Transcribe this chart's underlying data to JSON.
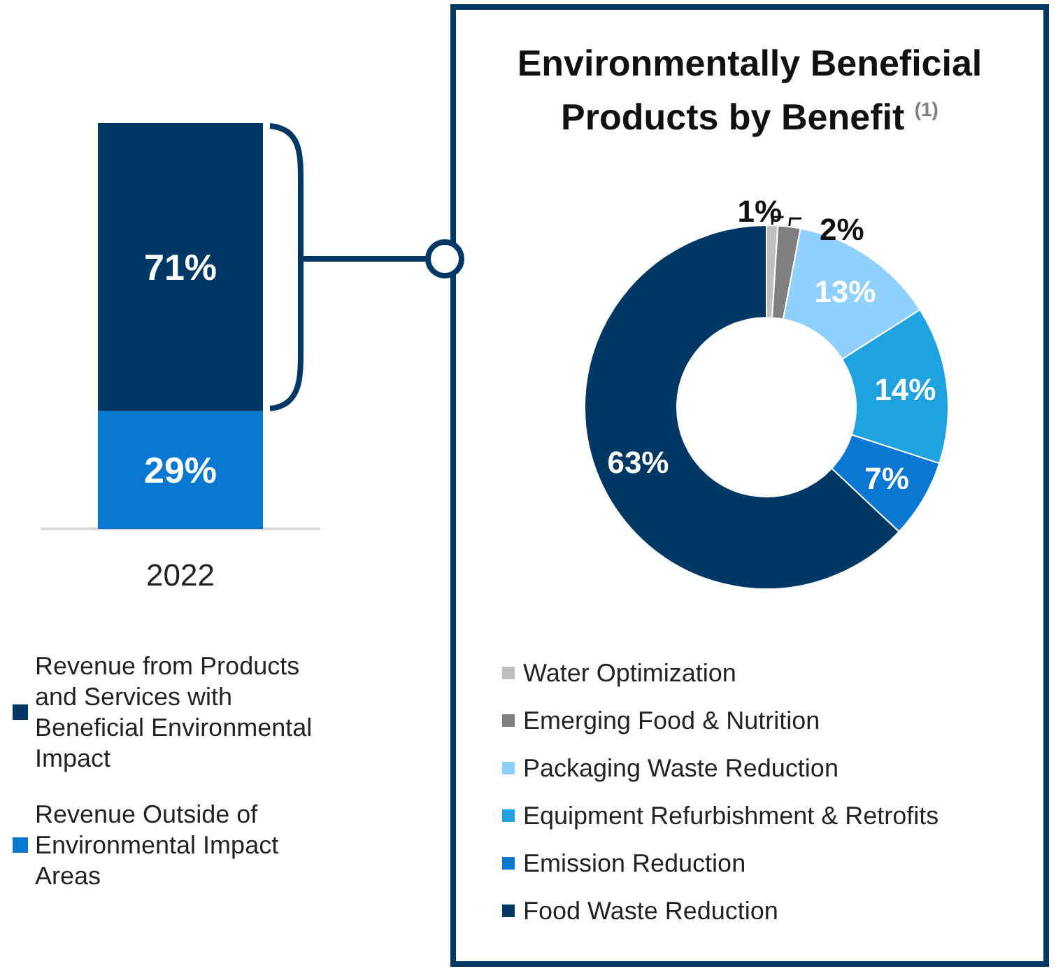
{
  "chart_data": [
    {
      "type": "bar",
      "stacked": true,
      "categories": [
        "2022"
      ],
      "legend": "bottom",
      "series": [
        {
          "name": "Revenue Outside of Environmental Impact Areas",
          "color": "#0a78d2",
          "values": [
            29
          ],
          "value_labels": [
            "29%"
          ]
        },
        {
          "name": "Revenue from Products and Services with Beneficial Environmental Impact",
          "color": "#003865",
          "values": [
            71
          ],
          "value_labels": [
            "71%"
          ]
        }
      ]
    },
    {
      "type": "donut",
      "title": "Environmentally Beneficial Products by Benefit $^{(1)}$",
      "legend": "bottom",
      "categories": [
        "Water Optimization",
        "Emerging Food & Nutrition",
        "Packaging Waste Reduction",
        "Equipment Refurbishment & Retrofits",
        "Emission Reduction",
        "Food Waste Reduction"
      ],
      "values": [
        1,
        2,
        13,
        14,
        7,
        63
      ],
      "colors": [
        "#bfbfbf",
        "#7f7f7f",
        "#8fd0ff",
        "#1fa3e0",
        "#0a78d2",
        "#003865"
      ],
      "value_labels": [
        "1%",
        "2%",
        "13%",
        "14%",
        "7%",
        "63%"
      ]
    }
  ]
}
